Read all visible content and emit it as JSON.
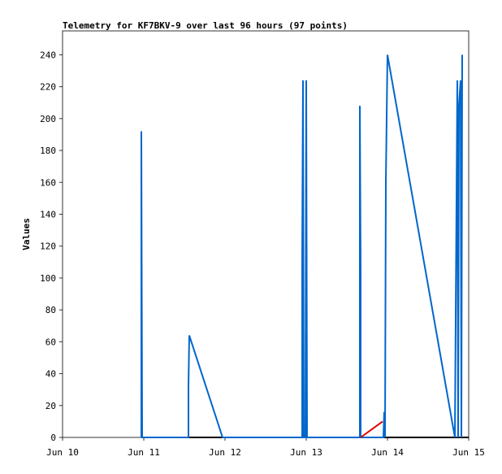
{
  "chart_data": {
    "type": "line",
    "title": "Telemetry for KF7BKV-9 over last 96 hours (97 points)",
    "y_label": "Values",
    "xlim": [
      0,
      5
    ],
    "xticks": [
      {
        "value": 0,
        "label": "Jun 10"
      },
      {
        "value": 1,
        "label": "Jun 11"
      },
      {
        "value": 2,
        "label": "Jun 12"
      },
      {
        "value": 3,
        "label": "Jun 13"
      },
      {
        "value": 4,
        "label": "Jun 14"
      },
      {
        "value": 5,
        "label": "Jun 15"
      }
    ],
    "ylim": [
      0,
      255
    ],
    "yticks": [
      0,
      20,
      40,
      60,
      80,
      100,
      120,
      140,
      160,
      180,
      200,
      220,
      240
    ],
    "series": [
      {
        "color": "#000000",
        "x": [
          0.97,
          5
        ],
        "values": [
          0,
          0
        ]
      },
      {
        "color": "#0066cc",
        "x": [
          0.97,
          0.97,
          0.98,
          1.55,
          1.55,
          1.56,
          1.97,
          2.95,
          2.95,
          2.96,
          2.97,
          2.99,
          3.0,
          3.01,
          3.66,
          3.66,
          3.67,
          3.67,
          3.95,
          3.96,
          3.97,
          3.98,
          4.0,
          4.83,
          4.86,
          4.87,
          4.88,
          4.9,
          4.91,
          4.92
        ],
        "values": [
          0,
          192,
          0,
          0,
          32,
          64,
          0,
          0,
          112,
          224,
          0,
          0,
          224,
          0,
          0,
          208,
          104,
          0,
          0,
          16,
          0,
          160,
          240,
          0,
          224,
          0,
          208,
          224,
          0,
          240
        ]
      },
      {
        "color": "#dd0000",
        "x": [
          3.67,
          3.94
        ],
        "values": [
          0,
          10
        ]
      }
    ]
  }
}
